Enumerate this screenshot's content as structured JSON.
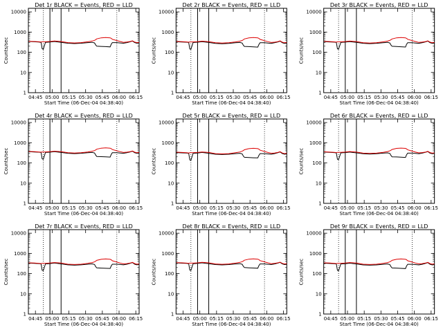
{
  "chart_data": {
    "type": "line",
    "layout": {
      "rows": 3,
      "cols": 3
    },
    "y_scale": "log",
    "ylim": [
      1,
      15000
    ],
    "yticks": [
      1,
      10,
      100,
      1000,
      10000
    ],
    "ylabel": "Counts/sec",
    "xlabel": "Start Time (06-Dec-04 04:38:40)",
    "x_ticks": [
      "04:45",
      "05:00",
      "05:15",
      "05:30",
      "05:45",
      "06:00",
      "06:15"
    ],
    "x_tick_minutes": [
      45,
      60,
      75,
      90,
      105,
      120,
      135
    ],
    "xlim_minutes": [
      38.67,
      138
    ],
    "dotted_vlines_minutes": [
      52,
      118
    ],
    "solid_vlines_minutes": [
      58,
      68
    ],
    "series_styles": [
      {
        "key": "events",
        "color": "#000000"
      },
      {
        "key": "lld",
        "color": "#dd0000"
      }
    ],
    "panels": [
      {
        "title": "Det 1r BLACK = Events, RED = LLD",
        "x_minutes": [
          39,
          44,
          48,
          50,
          51,
          52,
          54,
          58,
          62,
          68,
          74,
          80,
          86,
          92,
          96,
          98,
          99,
          100,
          104,
          108,
          112,
          113,
          114,
          118,
          121,
          124,
          127,
          130,
          132,
          134,
          136,
          138
        ],
        "events": [
          340,
          330,
          320,
          310,
          150,
          140,
          310,
          320,
          340,
          310,
          280,
          270,
          280,
          300,
          310,
          290,
          230,
          200,
          195,
          190,
          185,
          250,
          300,
          300,
          290,
          280,
          300,
          330,
          360,
          300,
          280,
          290
        ],
        "lld": [
          350,
          340,
          330,
          320,
          330,
          330,
          330,
          340,
          360,
          340,
          300,
          290,
          300,
          330,
          360,
          390,
          420,
          460,
          520,
          540,
          520,
          490,
          440,
          380,
          340,
          310,
          320,
          340,
          370,
          320,
          300,
          310
        ]
      },
      {
        "title": "Det 2r BLACK = Events, RED = LLD",
        "x_minutes": [
          39,
          44,
          48,
          50,
          51,
          52,
          54,
          58,
          62,
          68,
          74,
          80,
          86,
          92,
          96,
          98,
          99,
          100,
          104,
          108,
          112,
          113,
          114,
          118,
          121,
          124,
          127,
          130,
          132,
          134,
          136,
          138
        ],
        "events": [
          330,
          320,
          315,
          305,
          145,
          140,
          305,
          315,
          335,
          305,
          275,
          265,
          275,
          295,
          305,
          285,
          225,
          195,
          190,
          185,
          180,
          245,
          295,
          295,
          285,
          275,
          295,
          325,
          355,
          295,
          275,
          285
        ],
        "lld": [
          345,
          335,
          325,
          315,
          325,
          325,
          325,
          335,
          355,
          335,
          295,
          285,
          295,
          325,
          355,
          385,
          415,
          455,
          515,
          535,
          515,
          485,
          435,
          375,
          335,
          305,
          315,
          335,
          365,
          315,
          295,
          305
        ]
      },
      {
        "title": "Det 3r BLACK = Events, RED = LLD",
        "x_minutes": [
          39,
          44,
          48,
          50,
          51,
          52,
          54,
          58,
          62,
          68,
          74,
          80,
          86,
          92,
          96,
          98,
          99,
          100,
          104,
          108,
          112,
          113,
          114,
          118,
          121,
          124,
          127,
          130,
          132,
          134,
          136,
          138
        ],
        "events": [
          335,
          325,
          318,
          308,
          148,
          142,
          308,
          318,
          338,
          308,
          278,
          268,
          278,
          298,
          308,
          288,
          228,
          198,
          192,
          188,
          182,
          248,
          298,
          298,
          288,
          278,
          298,
          328,
          358,
          298,
          278,
          288
        ],
        "lld": [
          348,
          338,
          328,
          318,
          328,
          328,
          328,
          338,
          358,
          338,
          298,
          288,
          298,
          328,
          358,
          388,
          418,
          458,
          518,
          538,
          518,
          488,
          438,
          378,
          338,
          308,
          318,
          338,
          368,
          318,
          298,
          308
        ]
      },
      {
        "title": "Det 4r BLACK = Events, RED = LLD",
        "x_minutes": [
          39,
          44,
          48,
          50,
          51,
          52,
          54,
          58,
          62,
          68,
          74,
          80,
          86,
          92,
          96,
          98,
          99,
          100,
          104,
          108,
          112,
          113,
          114,
          118,
          121,
          124,
          127,
          130,
          132,
          134,
          136,
          138
        ],
        "events": [
          360,
          350,
          340,
          330,
          160,
          150,
          330,
          340,
          360,
          330,
          300,
          290,
          300,
          320,
          330,
          310,
          245,
          210,
          205,
          200,
          195,
          265,
          320,
          320,
          310,
          300,
          320,
          350,
          380,
          320,
          300,
          310
        ],
        "lld": [
          370,
          360,
          350,
          340,
          350,
          350,
          350,
          360,
          380,
          360,
          320,
          310,
          320,
          350,
          380,
          410,
          440,
          480,
          540,
          560,
          540,
          510,
          460,
          400,
          360,
          330,
          340,
          360,
          390,
          340,
          320,
          330
        ]
      },
      {
        "title": "Det 5r BLACK = Events, RED = LLD",
        "x_minutes": [
          39,
          44,
          48,
          50,
          51,
          52,
          54,
          58,
          62,
          68,
          74,
          80,
          86,
          92,
          96,
          98,
          99,
          100,
          104,
          108,
          112,
          113,
          114,
          118,
          121,
          124,
          127,
          130,
          132,
          134,
          136,
          138
        ],
        "events": [
          325,
          315,
          310,
          300,
          140,
          135,
          300,
          310,
          330,
          300,
          270,
          260,
          270,
          290,
          300,
          280,
          220,
          190,
          185,
          180,
          178,
          240,
          290,
          290,
          280,
          270,
          290,
          320,
          350,
          290,
          270,
          280
        ],
        "lld": [
          340,
          330,
          320,
          310,
          320,
          320,
          320,
          330,
          350,
          330,
          290,
          280,
          290,
          320,
          350,
          380,
          410,
          450,
          510,
          530,
          510,
          480,
          430,
          370,
          330,
          300,
          310,
          330,
          360,
          310,
          290,
          300
        ]
      },
      {
        "title": "Det 6r BLACK = Events, RED = LLD",
        "x_minutes": [
          39,
          44,
          48,
          50,
          51,
          52,
          54,
          58,
          62,
          68,
          74,
          80,
          86,
          92,
          96,
          98,
          99,
          100,
          104,
          108,
          112,
          113,
          114,
          118,
          121,
          124,
          127,
          130,
          132,
          134,
          136,
          138
        ],
        "events": [
          345,
          335,
          325,
          315,
          152,
          145,
          315,
          325,
          345,
          315,
          285,
          275,
          285,
          305,
          315,
          295,
          235,
          202,
          198,
          193,
          188,
          255,
          305,
          305,
          295,
          285,
          305,
          335,
          365,
          305,
          285,
          295
        ],
        "lld": [
          355,
          345,
          335,
          325,
          335,
          335,
          335,
          345,
          365,
          345,
          305,
          295,
          305,
          335,
          365,
          395,
          425,
          465,
          525,
          545,
          525,
          495,
          445,
          385,
          345,
          315,
          325,
          345,
          375,
          325,
          305,
          315
        ]
      },
      {
        "title": "Det 7r BLACK = Events, RED = LLD",
        "x_minutes": [
          39,
          44,
          48,
          50,
          51,
          52,
          54,
          58,
          62,
          68,
          74,
          80,
          86,
          92,
          96,
          98,
          99,
          100,
          104,
          108,
          112,
          113,
          114,
          118,
          121,
          124,
          127,
          130,
          132,
          134,
          136,
          138
        ],
        "events": [
          330,
          320,
          312,
          302,
          146,
          140,
          302,
          312,
          332,
          302,
          272,
          262,
          272,
          292,
          302,
          282,
          222,
          192,
          188,
          183,
          180,
          242,
          292,
          292,
          282,
          272,
          292,
          322,
          352,
          292,
          272,
          282
        ],
        "lld": [
          342,
          332,
          322,
          312,
          322,
          322,
          322,
          332,
          352,
          332,
          292,
          282,
          292,
          322,
          352,
          382,
          412,
          452,
          512,
          532,
          512,
          482,
          432,
          372,
          332,
          302,
          312,
          332,
          362,
          312,
          292,
          302
        ]
      },
      {
        "title": "Det 8r BLACK = Events, RED = LLD",
        "x_minutes": [
          39,
          44,
          48,
          50,
          51,
          52,
          54,
          58,
          62,
          68,
          74,
          80,
          86,
          92,
          96,
          98,
          99,
          100,
          104,
          108,
          112,
          113,
          114,
          118,
          121,
          124,
          127,
          130,
          132,
          134,
          136,
          138
        ],
        "events": [
          338,
          328,
          320,
          310,
          149,
          143,
          310,
          320,
          340,
          310,
          280,
          270,
          280,
          300,
          310,
          290,
          230,
          199,
          194,
          189,
          184,
          250,
          300,
          300,
          290,
          280,
          300,
          330,
          360,
          300,
          280,
          290
        ],
        "lld": [
          350,
          340,
          330,
          320,
          330,
          330,
          330,
          340,
          360,
          340,
          300,
          290,
          300,
          330,
          360,
          390,
          420,
          460,
          520,
          540,
          520,
          490,
          440,
          380,
          340,
          310,
          320,
          340,
          370,
          320,
          300,
          310
        ]
      },
      {
        "title": "Det 9r BLACK = Events, RED = LLD",
        "x_minutes": [
          39,
          44,
          48,
          50,
          51,
          52,
          54,
          58,
          62,
          68,
          74,
          80,
          86,
          92,
          96,
          98,
          99,
          100,
          104,
          108,
          112,
          113,
          114,
          118,
          121,
          124,
          127,
          130,
          132,
          134,
          136,
          138
        ],
        "events": [
          328,
          318,
          310,
          300,
          144,
          138,
          300,
          310,
          328,
          300,
          270,
          262,
          270,
          290,
          300,
          280,
          221,
          191,
          187,
          182,
          178,
          240,
          290,
          290,
          280,
          270,
          290,
          320,
          350,
          290,
          270,
          280
        ],
        "lld": [
          342,
          332,
          322,
          312,
          322,
          322,
          322,
          332,
          352,
          332,
          292,
          282,
          292,
          322,
          352,
          382,
          412,
          452,
          512,
          532,
          512,
          482,
          432,
          372,
          332,
          302,
          312,
          332,
          362,
          312,
          292,
          302
        ]
      }
    ]
  }
}
